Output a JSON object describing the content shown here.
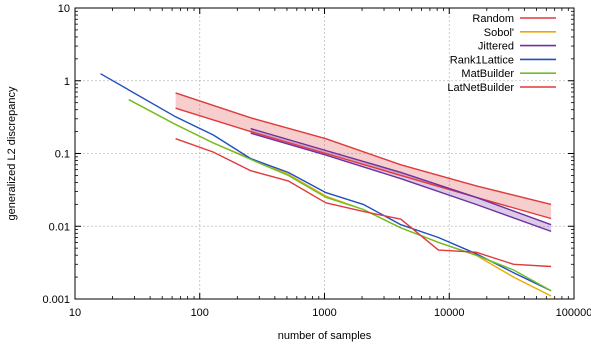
{
  "chart_data": {
    "type": "line",
    "xscale": "log",
    "yscale": "log",
    "xlim": [
      10,
      100000
    ],
    "ylim": [
      0.001,
      10
    ],
    "xlabel": "number of samples",
    "ylabel": "generalized L2 discrepancy",
    "grid": true,
    "legend_position": "top-right",
    "xticks": [
      {
        "value": 10,
        "label": "10"
      },
      {
        "value": 100,
        "label": "100"
      },
      {
        "value": 1000,
        "label": "1000"
      },
      {
        "value": 10000,
        "label": "10000"
      },
      {
        "value": 100000,
        "label": "100000"
      }
    ],
    "yticks": [
      {
        "value": 0.001,
        "label": "0.001"
      },
      {
        "value": 0.01,
        "label": "0.01"
      },
      {
        "value": 0.1,
        "label": "0.1"
      },
      {
        "value": 1,
        "label": "1"
      },
      {
        "value": 10,
        "label": "10"
      }
    ],
    "series": [
      {
        "name": "Random",
        "color": "#e03a3a",
        "style": "band",
        "x": [
          64,
          256,
          1024,
          4096,
          16384,
          65536
        ],
        "upper": [
          0.68,
          0.31,
          0.16,
          0.07,
          0.036,
          0.02
        ],
        "lower": [
          0.42,
          0.2,
          0.1,
          0.05,
          0.025,
          0.0128
        ]
      },
      {
        "name": "Sobol'",
        "color": "#f0a800",
        "style": "line",
        "x": [
          27,
          64,
          128,
          256,
          512,
          1024,
          2048,
          4096,
          8192,
          16384,
          32768,
          65536
        ],
        "values": [
          0.55,
          0.25,
          0.14,
          0.085,
          0.052,
          0.026,
          0.017,
          0.0095,
          0.006,
          0.004,
          0.002,
          0.0011
        ]
      },
      {
        "name": "Jittered",
        "color": "#7030a0",
        "style": "band",
        "x": [
          256,
          1024,
          4096,
          16384,
          65536
        ],
        "upper": [
          0.22,
          0.11,
          0.055,
          0.025,
          0.0105
        ],
        "lower": [
          0.19,
          0.095,
          0.045,
          0.02,
          0.0085
        ]
      },
      {
        "name": "Rank1Lattice",
        "color": "#1f4fc0",
        "style": "line",
        "x": [
          16,
          64,
          128,
          256,
          512,
          1024,
          2048,
          4096,
          8192,
          16384,
          32768,
          65536
        ],
        "values": [
          1.25,
          0.32,
          0.18,
          0.085,
          0.055,
          0.029,
          0.02,
          0.0105,
          0.007,
          0.0042,
          0.0023,
          0.0013
        ]
      },
      {
        "name": "MatBuilder",
        "color": "#6cbf2a",
        "style": "line",
        "x": [
          27,
          64,
          128,
          256,
          512,
          1024,
          2048,
          4096,
          8192,
          16384,
          32768,
          65536
        ],
        "values": [
          0.55,
          0.25,
          0.14,
          0.083,
          0.05,
          0.025,
          0.017,
          0.0095,
          0.006,
          0.004,
          0.0025,
          0.0013
        ]
      },
      {
        "name": "LatNetBuilder",
        "color": "#e03a3a",
        "style": "line",
        "x": [
          64,
          128,
          256,
          512,
          1024,
          2048,
          4096,
          8192,
          16384,
          32768,
          65536
        ],
        "values": [
          0.16,
          0.105,
          0.058,
          0.042,
          0.021,
          0.016,
          0.0125,
          0.0047,
          0.0044,
          0.003,
          0.0028
        ]
      }
    ]
  }
}
